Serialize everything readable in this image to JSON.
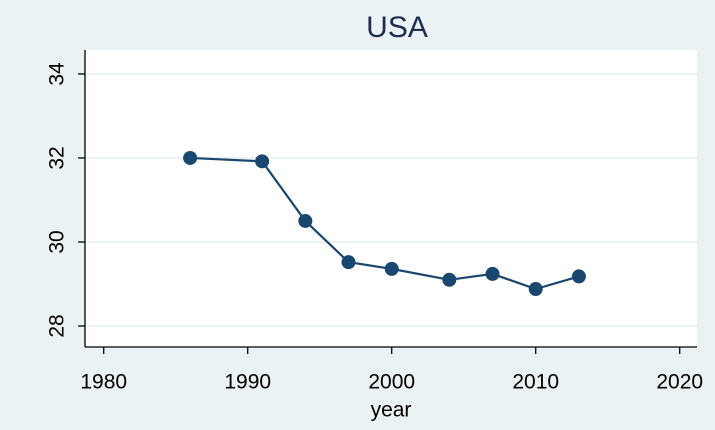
{
  "chart_data": {
    "type": "line",
    "title": "USA",
    "xlabel": "year",
    "x": [
      1986,
      1991,
      1994,
      1997,
      2000,
      2004,
      2007,
      2010,
      2013
    ],
    "series": [
      {
        "name": "USA",
        "color": "#1a476f",
        "values": [
          32.0,
          31.92,
          30.5,
          29.52,
          29.36,
          29.1,
          29.24,
          28.88,
          29.18
        ]
      }
    ],
    "xlim": [
      1978.7,
      2021.2
    ],
    "xticks": [
      1980,
      1990,
      2000,
      2010,
      2020
    ],
    "ylim": [
      27.5,
      34.57
    ],
    "yticks": [
      28,
      30,
      32,
      34
    ],
    "grid": true
  }
}
